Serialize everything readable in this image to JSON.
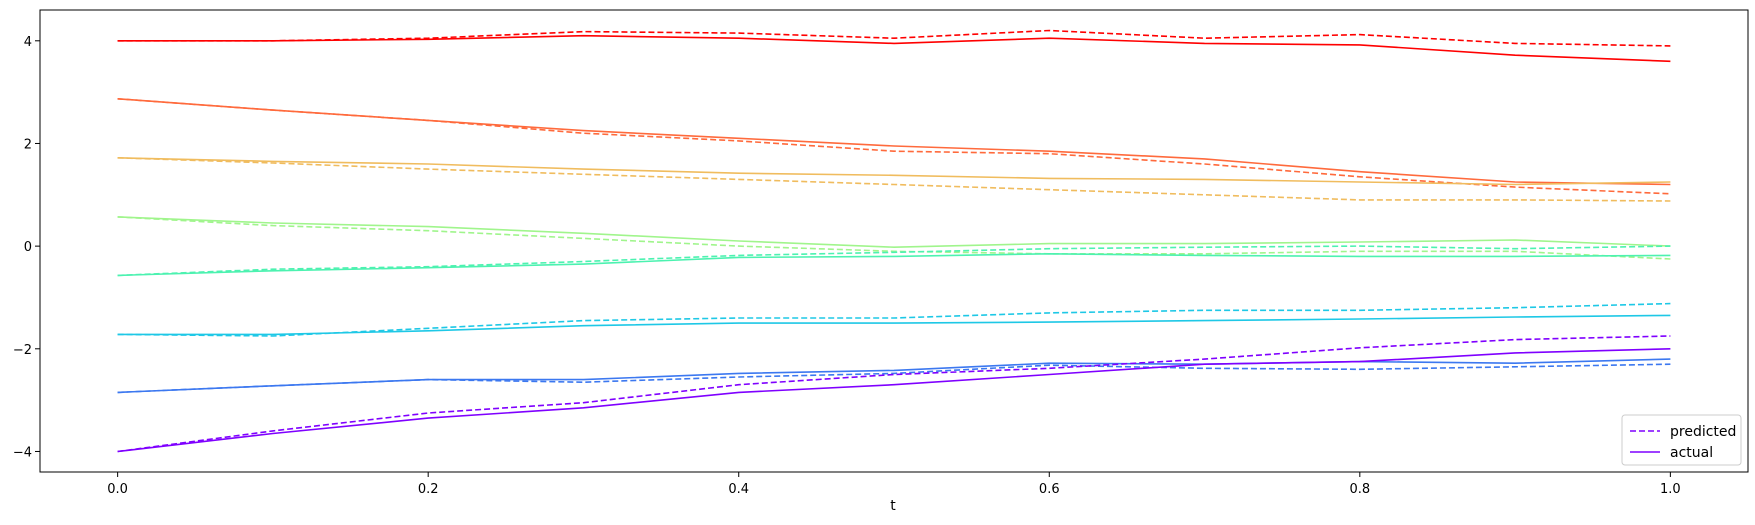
{
  "chart_data": {
    "type": "line",
    "xlabel": "t",
    "ylabel": "",
    "xlim": [
      -0.05,
      1.05
    ],
    "ylim": [
      -4.4,
      4.6
    ],
    "xticks": [
      0.0,
      0.2,
      0.4,
      0.6,
      0.8,
      1.0
    ],
    "xtick_labels": [
      "0.0",
      "0.2",
      "0.4",
      "0.6",
      "0.8",
      "1.0"
    ],
    "yticks": [
      -4,
      -2,
      0,
      2,
      4
    ],
    "ytick_labels": [
      "−4",
      "−2",
      "0",
      "2",
      "4"
    ],
    "grid": false,
    "legend": {
      "placement": "lower-right",
      "entries": [
        {
          "label": "predicted",
          "style": "dashed",
          "color": "#7f00ff"
        },
        {
          "label": "actual",
          "style": "solid",
          "color": "#7f00ff"
        }
      ]
    },
    "x": [
      0.0,
      0.1,
      0.2,
      0.3,
      0.4,
      0.5,
      0.6,
      0.7,
      0.8,
      0.9,
      1.0
    ],
    "series": [
      {
        "color": "#ff0000",
        "style": "solid",
        "values": [
          4.0,
          4.0,
          4.03,
          4.1,
          4.05,
          3.95,
          4.05,
          3.95,
          3.92,
          3.72,
          3.6
        ]
      },
      {
        "color": "#ff0000",
        "style": "dashed",
        "values": [
          4.0,
          4.0,
          4.05,
          4.18,
          4.15,
          4.05,
          4.2,
          4.05,
          4.12,
          3.95,
          3.9
        ]
      },
      {
        "color": "#ff6a3c",
        "style": "solid",
        "values": [
          2.87,
          2.65,
          2.45,
          2.25,
          2.1,
          1.95,
          1.85,
          1.7,
          1.45,
          1.25,
          1.2
        ]
      },
      {
        "color": "#ff6a3c",
        "style": "dashed",
        "values": [
          2.87,
          2.65,
          2.45,
          2.2,
          2.05,
          1.85,
          1.8,
          1.6,
          1.35,
          1.15,
          1.02
        ]
      },
      {
        "color": "#f0bc5e",
        "style": "solid",
        "values": [
          1.72,
          1.65,
          1.6,
          1.5,
          1.42,
          1.38,
          1.32,
          1.3,
          1.25,
          1.2,
          1.25
        ]
      },
      {
        "color": "#f0bc5e",
        "style": "dashed",
        "values": [
          1.72,
          1.62,
          1.5,
          1.4,
          1.3,
          1.2,
          1.1,
          1.0,
          0.9,
          0.9,
          0.88
        ]
      },
      {
        "color": "#a0f58c",
        "style": "solid",
        "values": [
          0.57,
          0.45,
          0.38,
          0.25,
          0.1,
          -0.02,
          0.05,
          0.05,
          0.08,
          0.12,
          0.0
        ]
      },
      {
        "color": "#a0f58c",
        "style": "dashed",
        "values": [
          0.57,
          0.4,
          0.3,
          0.15,
          0.0,
          -0.1,
          -0.15,
          -0.15,
          -0.1,
          -0.1,
          -0.25
        ]
      },
      {
        "color": "#4cf2b0",
        "style": "solid",
        "values": [
          -0.57,
          -0.48,
          -0.42,
          -0.35,
          -0.22,
          -0.2,
          -0.15,
          -0.18,
          -0.2,
          -0.2,
          -0.18
        ]
      },
      {
        "color": "#4cf2b0",
        "style": "dashed",
        "values": [
          -0.57,
          -0.45,
          -0.4,
          -0.3,
          -0.18,
          -0.12,
          -0.05,
          -0.02,
          0.0,
          -0.05,
          0.0
        ]
      },
      {
        "color": "#1ec8e6",
        "style": "solid",
        "values": [
          -1.72,
          -1.72,
          -1.65,
          -1.55,
          -1.5,
          -1.5,
          -1.48,
          -1.45,
          -1.42,
          -1.38,
          -1.35
        ]
      },
      {
        "color": "#1ec8e6",
        "style": "dashed",
        "values": [
          -1.72,
          -1.75,
          -1.6,
          -1.45,
          -1.4,
          -1.4,
          -1.3,
          -1.25,
          -1.25,
          -1.2,
          -1.12
        ]
      },
      {
        "color": "#3c78f0",
        "style": "solid",
        "values": [
          -2.85,
          -2.72,
          -2.6,
          -2.6,
          -2.48,
          -2.42,
          -2.28,
          -2.3,
          -2.25,
          -2.28,
          -2.2
        ]
      },
      {
        "color": "#3c78f0",
        "style": "dashed",
        "values": [
          -2.85,
          -2.72,
          -2.6,
          -2.65,
          -2.55,
          -2.48,
          -2.32,
          -2.38,
          -2.4,
          -2.35,
          -2.3
        ]
      },
      {
        "color": "#7f00ff",
        "style": "solid",
        "values": [
          -4.0,
          -3.65,
          -3.35,
          -3.15,
          -2.85,
          -2.7,
          -2.5,
          -2.3,
          -2.25,
          -2.08,
          -2.0
        ]
      },
      {
        "color": "#7f00ff",
        "style": "dashed",
        "values": [
          -4.0,
          -3.6,
          -3.25,
          -3.05,
          -2.7,
          -2.5,
          -2.38,
          -2.2,
          -1.98,
          -1.82,
          -1.75
        ]
      }
    ]
  }
}
